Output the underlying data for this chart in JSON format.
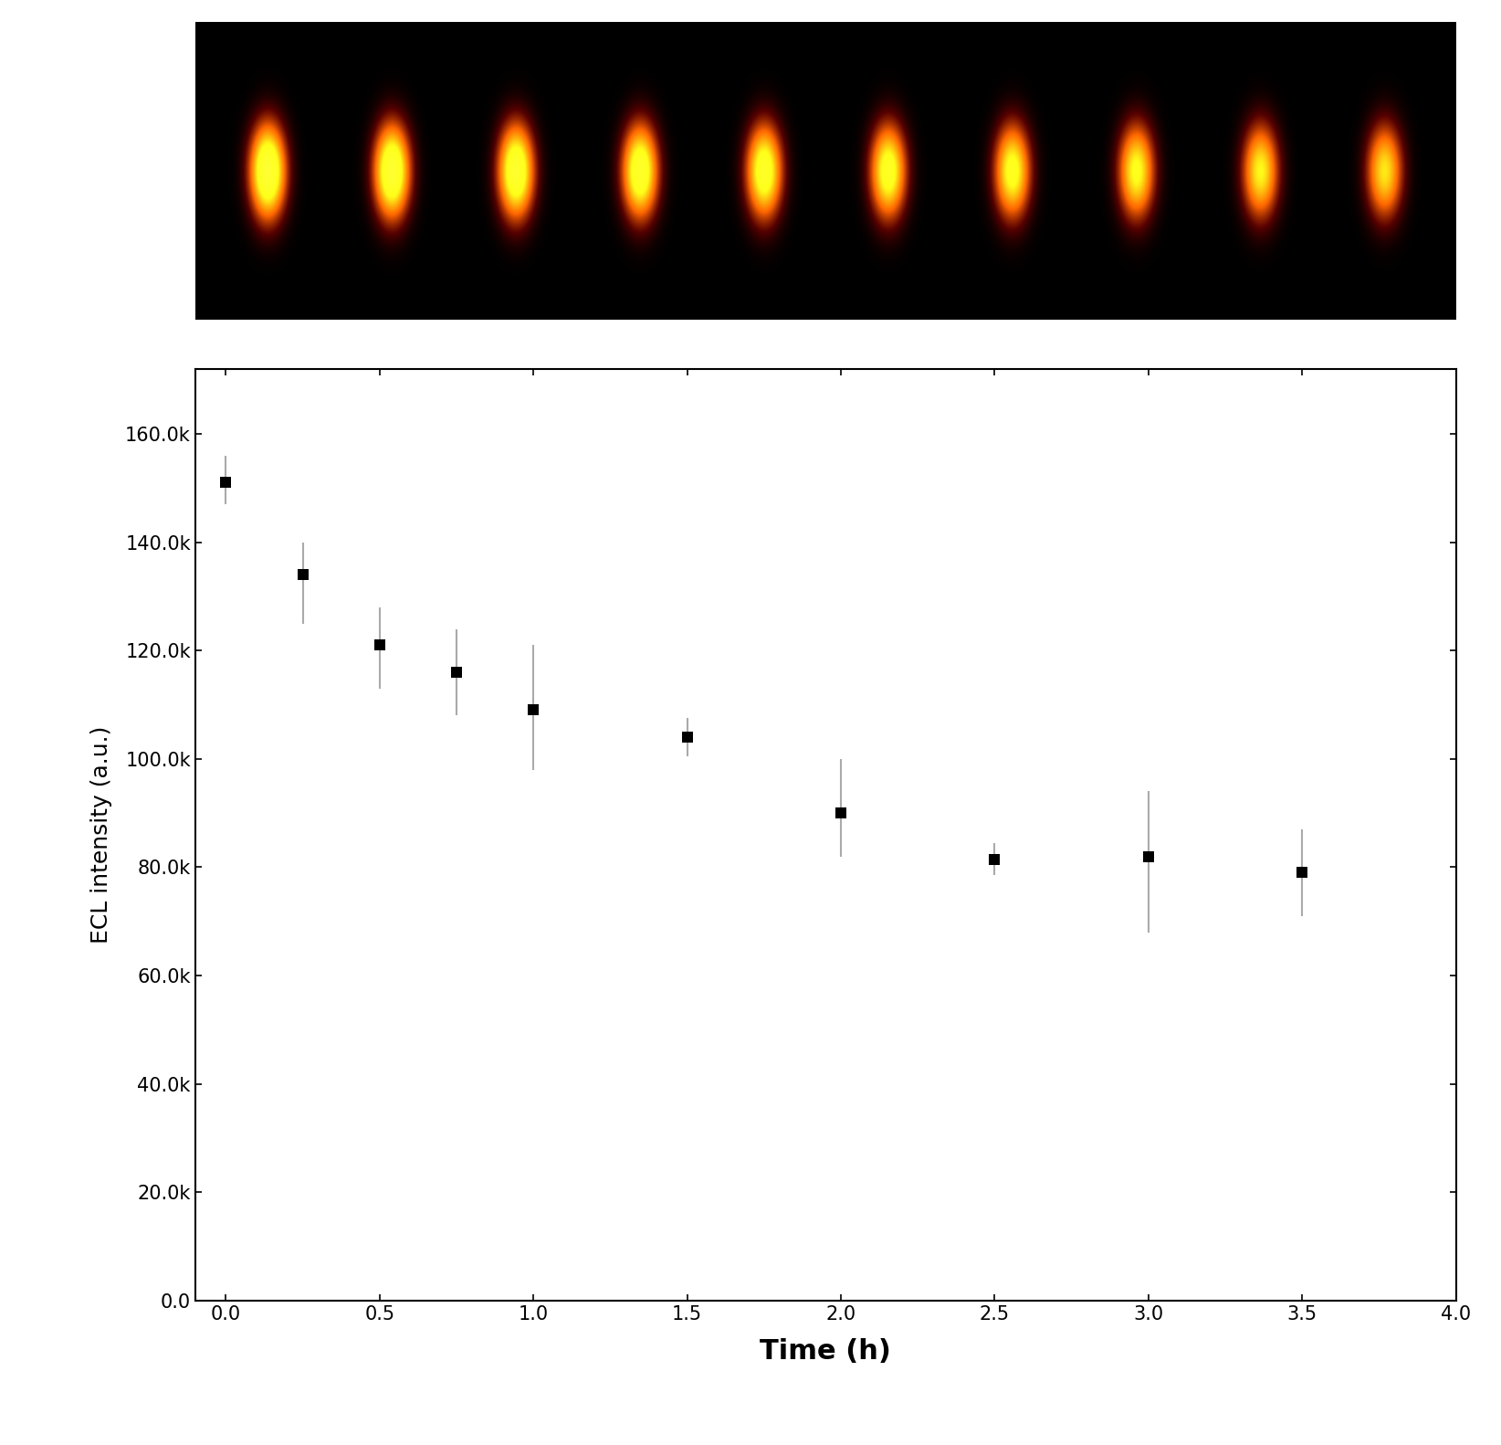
{
  "x": [
    0.0,
    0.25,
    0.5,
    0.75,
    1.0,
    1.5,
    2.0,
    2.5,
    3.0,
    3.5
  ],
  "y": [
    151000,
    134000,
    121000,
    116000,
    109000,
    104000,
    90000,
    81500,
    82000,
    79000
  ],
  "yerr_upper": [
    5000,
    6000,
    7000,
    8000,
    12000,
    3500,
    10000,
    3000,
    12000,
    8000
  ],
  "yerr_lower": [
    4000,
    9000,
    8000,
    8000,
    11000,
    3500,
    8000,
    3000,
    14000,
    8000
  ],
  "xlabel": "Time (h)",
  "ylabel": "ECL intensity (a.u.)",
  "xlim": [
    -0.1,
    4.0
  ],
  "ylim": [
    0,
    172000
  ],
  "xticks": [
    0.0,
    0.5,
    1.0,
    1.5,
    2.0,
    2.5,
    3.0,
    3.5,
    4.0
  ],
  "ytick_values": [
    0,
    20000,
    40000,
    60000,
    80000,
    100000,
    120000,
    140000,
    160000
  ],
  "ytick_labels": [
    "0.0",
    "20.0k",
    "40.0k",
    "60.0k",
    "80.0k",
    "100.0k",
    "120.0k",
    "140.0k",
    "160.0k"
  ],
  "marker": "s",
  "marker_color": "black",
  "marker_size": 9,
  "ecolor": "#aaaaaa",
  "background_color": "#ffffff",
  "num_glows": 10,
  "figure_width": 16.44,
  "figure_height": 15.82,
  "xlabel_fontsize": 22,
  "ylabel_fontsize": 18,
  "tick_fontsize": 15
}
